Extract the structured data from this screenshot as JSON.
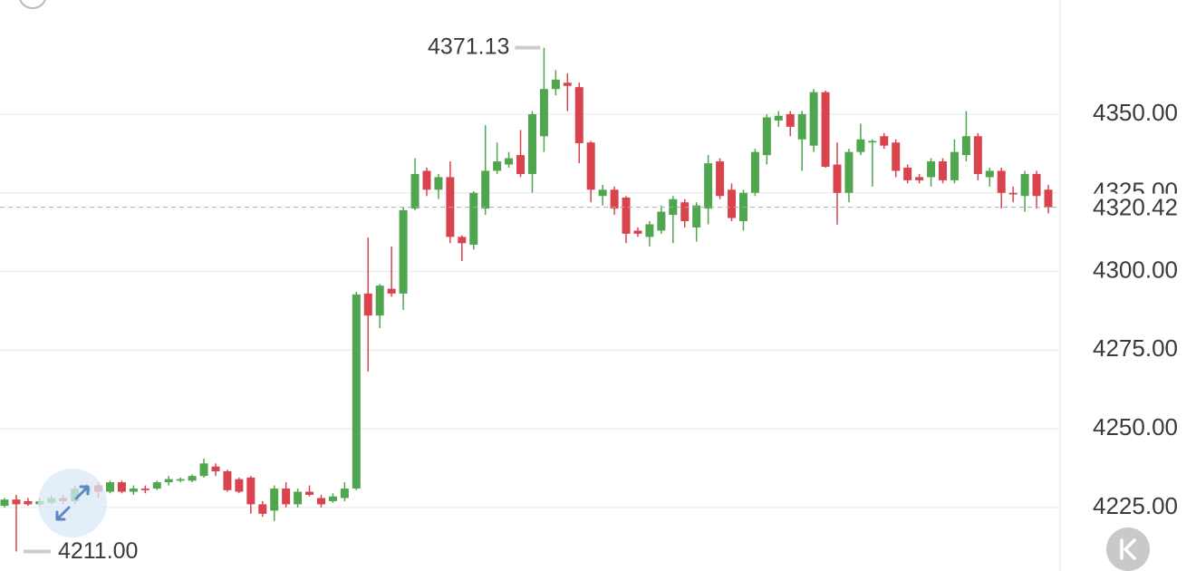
{
  "chart_data": {
    "type": "candlestick",
    "up_color": "#4fa64f",
    "down_color": "#d8434e",
    "ylim": [
      4204.8,
      4386.3
    ],
    "yticks": [
      {
        "value": 4225,
        "label": "4225.00"
      },
      {
        "value": 4250,
        "label": "4250.00"
      },
      {
        "value": 4275,
        "label": "4275.00"
      },
      {
        "value": 4300,
        "label": "4300.00"
      },
      {
        "value": 4325,
        "label": "4325.00"
      },
      {
        "value": 4350,
        "label": "4350.00"
      }
    ],
    "grid": true,
    "max_annotation": 4371.13,
    "min_annotation": {
      "value": 4211,
      "label": "4211.00"
    },
    "last_price": 4320.42,
    "open": [
      4225.5,
      4227.5,
      4227,
      4226,
      4226.5,
      4228,
      4227,
      4230,
      4232,
      4230,
      4233,
      4230,
      4231,
      4231,
      4233,
      4233.5,
      4233.5,
      4235,
      4238,
      4236.5,
      4234,
      4234.5,
      4226,
      4224,
      4231,
      4226,
      4230,
      4228,
      4227,
      4228,
      4231,
      4293,
      4286,
      4294.5,
      4293,
      4320,
      4332,
      4326,
      4330,
      4311,
      4308.5,
      4320,
      4332,
      4334,
      4337,
      4331,
      4343,
      4358,
      4360,
      4358.6,
      4341,
      4324,
      4326,
      4323.5,
      4313,
      4311,
      4313,
      4318,
      4322,
      4314,
      4320,
      4335,
      4326,
      4316,
      4325,
      4337,
      4348,
      4350,
      4342,
      4340,
      4357,
      4334,
      4325,
      4338,
      4341,
      4343,
      4341,
      4333,
      4330,
      4330,
      4335,
      4329,
      4337,
      4343,
      4330,
      4332,
      4325,
      4324,
      4331,
      4326
    ],
    "high": [
      4228,
      4229,
      4228,
      4228,
      4229,
      4229,
      4232,
      4232.5,
      4233,
      4233.5,
      4233.5,
      4232,
      4232,
      4233.5,
      4235,
      4234.5,
      4235.5,
      4240.5,
      4239,
      4237,
      4234.5,
      4235,
      4227,
      4232,
      4233,
      4231,
      4232,
      4229,
      4229.5,
      4233,
      4293.5,
      4310.8,
      4296,
      4308,
      4320.5,
      4336,
      4333,
      4331,
      4335,
      4311.5,
      4325.5,
      4346.5,
      4341,
      4338,
      4345,
      4351,
      4371.13,
      4364,
      4363,
      4360,
      4341.5,
      4327.5,
      4327,
      4324,
      4314,
      4316,
      4321,
      4324,
      4323,
      4322,
      4337,
      4336,
      4328,
      4326,
      4339,
      4350,
      4351,
      4351,
      4351,
      4358,
      4357.5,
      4341,
      4339,
      4347,
      4342,
      4344,
      4342,
      4334,
      4331,
      4336,
      4336,
      4342,
      4351,
      4344,
      4333,
      4333,
      4327,
      4332,
      4332,
      4327.5
    ],
    "low": [
      4225,
      4211,
      4225.5,
      4225.5,
      4226,
      4226,
      4226,
      4229,
      4228,
      4229.5,
      4229.5,
      4229,
      4229.5,
      4230.5,
      4232,
      4233,
      4233,
      4234.5,
      4235,
      4230,
      4229.5,
      4223,
      4222,
      4220.7,
      4225,
      4225,
      4228.5,
      4225,
      4226.5,
      4227,
      4230.5,
      4268.2,
      4282,
      4292,
      4287.8,
      4319.5,
      4324,
      4323,
      4309,
      4303.3,
      4307,
      4318,
      4331,
      4333,
      4330,
      4325,
      4338,
      4356,
      4351,
      4334.4,
      4322,
      4321,
      4318,
      4309,
      4311,
      4308,
      4312,
      4309,
      4314,
      4309.5,
      4315,
      4323,
      4316,
      4313,
      4324,
      4334,
      4346,
      4343,
      4332,
      4338,
      4333,
      4314.9,
      4322,
      4337,
      4327,
      4339,
      4330,
      4328,
      4328,
      4327,
      4328,
      4328,
      4335,
      4329,
      4327,
      4320,
      4322,
      4319,
      4320,
      4318.5
    ],
    "close": [
      4227.5,
      4226,
      4226,
      4227,
      4228,
      4227,
      4231,
      4231.5,
      4230,
      4233,
      4230,
      4231,
      4230.5,
      4233,
      4234,
      4234,
      4235,
      4239,
      4236.5,
      4230.5,
      4230,
      4226,
      4223,
      4231,
      4226,
      4230,
      4229,
      4226,
      4228.5,
      4231,
      4292.7,
      4286,
      4295.5,
      4293,
      4319.5,
      4331,
      4326,
      4330,
      4311,
      4309,
      4325,
      4332,
      4335,
      4336,
      4331,
      4350,
      4358,
      4361,
      4359,
      4340.8,
      4326,
      4326,
      4320,
      4312,
      4312,
      4315,
      4319,
      4323,
      4316,
      4321,
      4334.4,
      4324,
      4317,
      4325,
      4338,
      4349,
      4349.5,
      4346,
      4350,
      4357,
      4333.3,
      4325,
      4338,
      4342,
      4341.5,
      4340,
      4332,
      4329,
      4329,
      4335,
      4329,
      4338,
      4343,
      4331,
      4332,
      4325,
      4324.5,
      4331,
      4324,
      4320.42
    ]
  }
}
